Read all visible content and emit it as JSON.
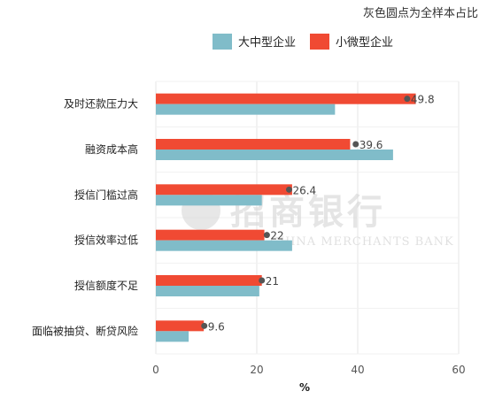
{
  "note": "灰色圆点为全样本占比",
  "colors": {
    "large": "#80bcc9",
    "small": "#f04a33",
    "grid": "#e6e6e6",
    "dot": "#555555",
    "watermark": "#d4d4d4"
  },
  "watermark": {
    "cn": "招商银行",
    "en": "CHINA MERCHANTS BANK"
  },
  "chart_data": {
    "type": "bar",
    "orientation": "horizontal",
    "categories": [
      "及时还款压力大",
      "融资成本高",
      "授信门槛过高",
      "授信效率过低",
      "授信额度不足",
      "面临被抽贷、断贷风险"
    ],
    "series": [
      {
        "name": "大中型企业",
        "values": [
          35.5,
          47,
          21,
          27,
          20.5,
          6.5
        ]
      },
      {
        "name": "小微型企业",
        "values": [
          51.5,
          38.5,
          27,
          21.5,
          21,
          9.5
        ]
      }
    ],
    "overall": {
      "values": [
        49.8,
        39.6,
        26.4,
        22,
        21,
        9.6
      ],
      "labels": [
        "49.8",
        "39.6",
        "26.4",
        "22",
        "21",
        "9.6"
      ]
    },
    "xlabel": "%",
    "xticks": [
      0,
      20,
      40,
      60
    ],
    "xlim": [
      0,
      60
    ],
    "grid": true,
    "legend_position": "top"
  }
}
